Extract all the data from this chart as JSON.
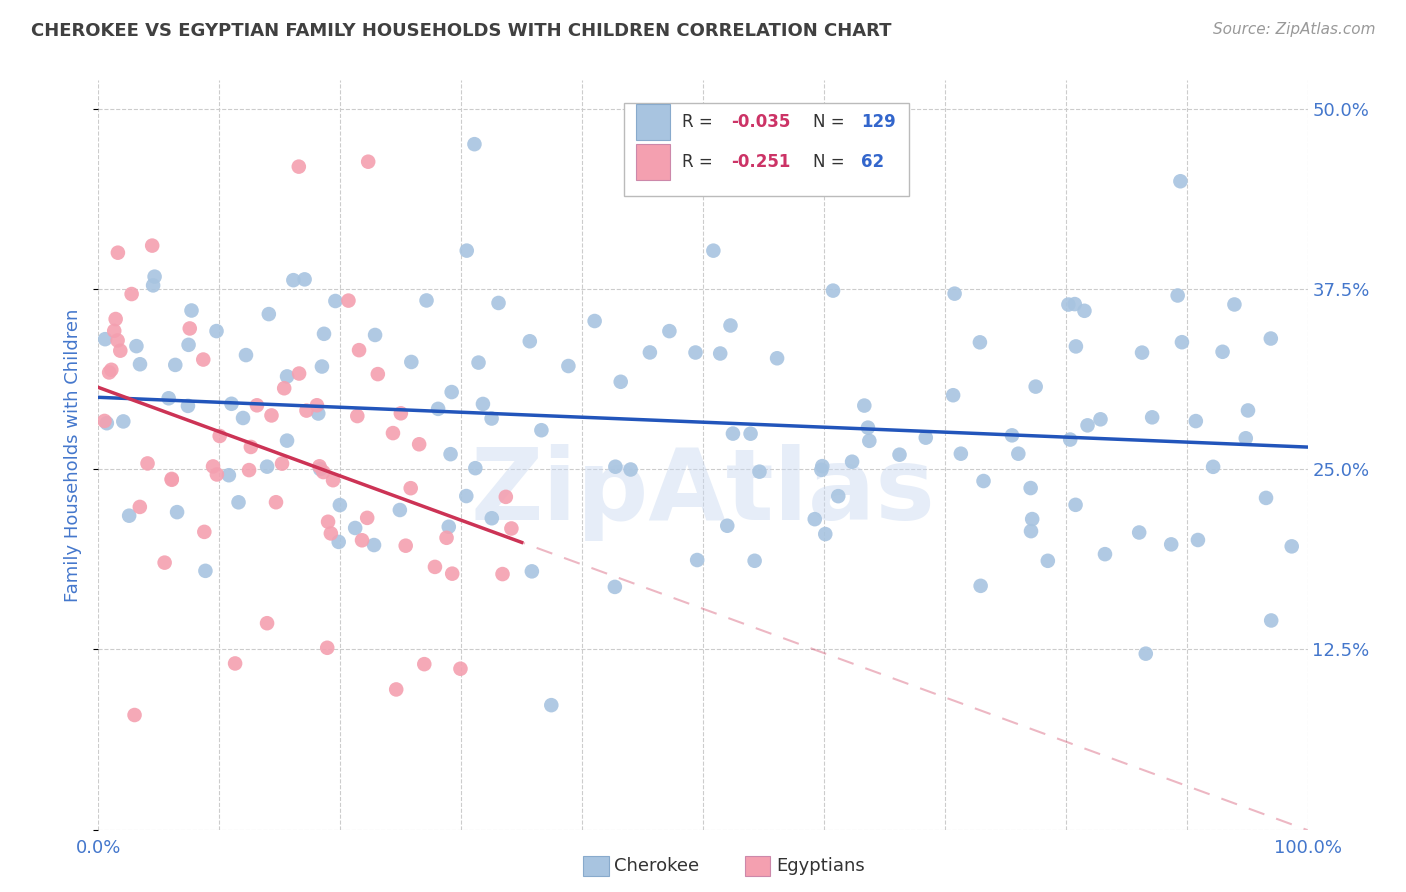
{
  "title": "CHEROKEE VS EGYPTIAN FAMILY HOUSEHOLDS WITH CHILDREN CORRELATION CHART",
  "source": "Source: ZipAtlas.com",
  "ylabel": "Family Households with Children",
  "cherokee_color": "#a8c4e0",
  "egyptian_color": "#f4a0b0",
  "cherokee_line_color": "#2255bb",
  "egyptian_line_color": "#cc3355",
  "cherokee_R": -0.035,
  "cherokee_N": 129,
  "egyptian_R": -0.251,
  "egyptian_N": 62,
  "watermark": "ZipAtlas",
  "background_color": "#ffffff",
  "grid_color": "#cccccc",
  "title_color": "#404040",
  "axis_label_color": "#4477cc",
  "tick_label_color": "#4477cc",
  "legend_R_color": "#cc3366",
  "legend_N_color": "#3366cc",
  "source_color": "#999999",
  "xlim": [
    0.0,
    1.0
  ],
  "ylim": [
    0.0,
    0.52
  ],
  "x_ticks": [
    0.0,
    0.1,
    0.2,
    0.3,
    0.4,
    0.5,
    0.6,
    0.7,
    0.8,
    0.9,
    1.0
  ],
  "y_ticks": [
    0.0,
    0.125,
    0.25,
    0.375,
    0.5
  ],
  "x_tick_labels": [
    "0.0%",
    "",
    "",
    "",
    "",
    "",
    "",
    "",
    "",
    "",
    "100.0%"
  ],
  "y_tick_labels": [
    "",
    "12.5%",
    "25.0%",
    "37.5%",
    "50.0%"
  ]
}
